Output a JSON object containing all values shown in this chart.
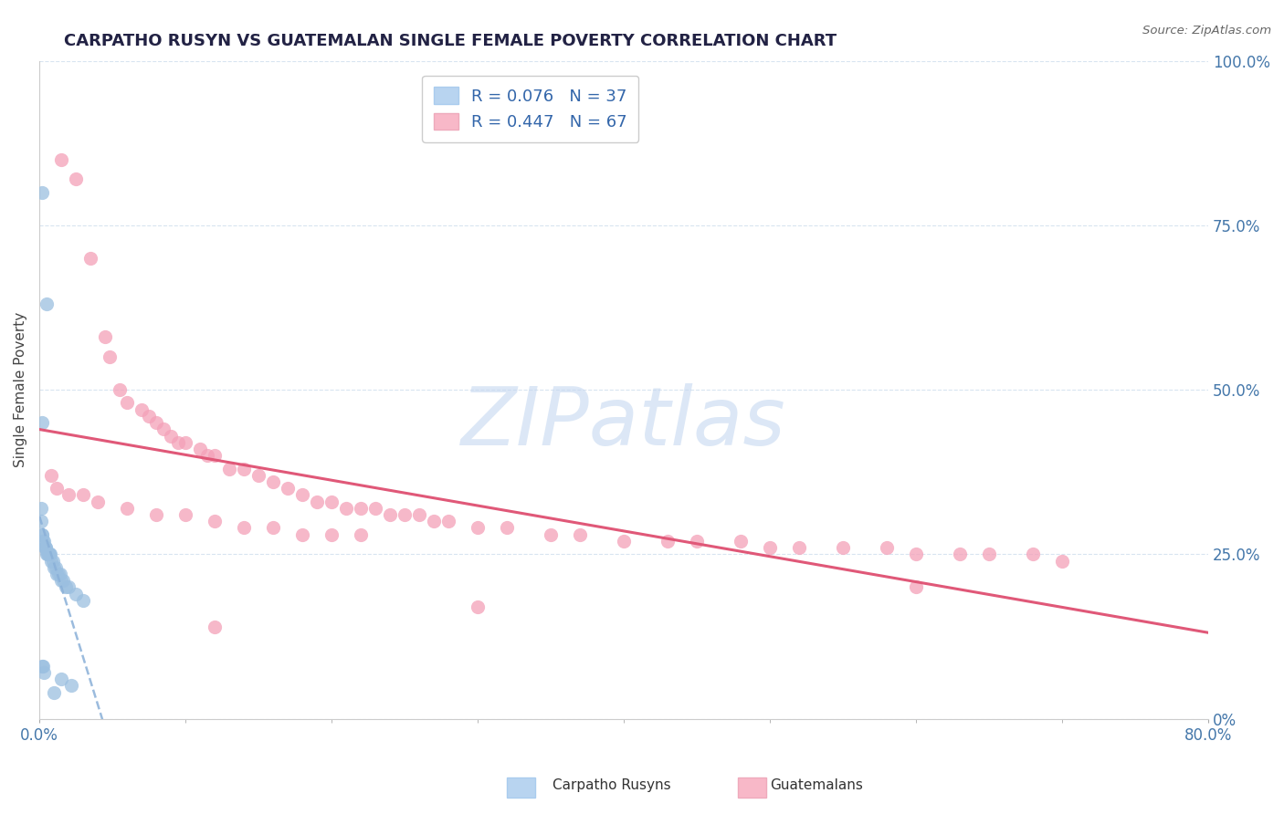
{
  "title": "CARPATHO RUSYN VS GUATEMALAN SINGLE FEMALE POVERTY CORRELATION CHART",
  "source_text": "Source: ZipAtlas.com",
  "ylabel": "Single Female Poverty",
  "ytick_labels": [
    "0%",
    "25.0%",
    "50.0%",
    "75.0%",
    "100.0%"
  ],
  "ytick_values": [
    0,
    25,
    50,
    75,
    100
  ],
  "xmin": 0.0,
  "xmax": 80.0,
  "ymin": 0.0,
  "ymax": 100.0,
  "carpatho_color": "#9bbfe0",
  "guatemalan_color": "#f4a0b8",
  "trendline_carpatho_color": "#8ab0d8",
  "trendline_guatemalan_color": "#e05878",
  "watermark_text": "ZIPatlas",
  "watermark_color": "#c5d8f0",
  "background_color": "#ffffff",
  "grid_color": "#d8e4f0",
  "legend_carpatho_color": "#b8d4f0",
  "legend_guatemalan_color": "#f8b8c8",
  "legend_text_color": "#3366aa",
  "carpatho_x": [
    0.15,
    0.5,
    0.2,
    0.1,
    0.1,
    0.15,
    0.2,
    0.25,
    0.3,
    0.35,
    0.4,
    0.45,
    0.5,
    0.55,
    0.6,
    0.65,
    0.7,
    0.75,
    0.8,
    0.9,
    1.0,
    1.1,
    1.2,
    1.3,
    1.4,
    1.5,
    1.6,
    1.8,
    2.0,
    2.5,
    3.0,
    0.2,
    0.25,
    0.3,
    1.5,
    2.2,
    1.0
  ],
  "carpatho_y": [
    80,
    63,
    45,
    32,
    30,
    28,
    28,
    27,
    27,
    26,
    26,
    26,
    25,
    25,
    25,
    25,
    25,
    25,
    24,
    24,
    23,
    23,
    22,
    22,
    22,
    21,
    21,
    20,
    20,
    19,
    18,
    8,
    8,
    7,
    6,
    5,
    4
  ],
  "guatemalan_x": [
    1.5,
    2.5,
    3.5,
    4.5,
    4.8,
    5.5,
    6.0,
    7.0,
    7.5,
    8.0,
    8.5,
    9.0,
    9.5,
    10.0,
    11.0,
    11.5,
    12.0,
    13.0,
    14.0,
    15.0,
    16.0,
    17.0,
    18.0,
    19.0,
    20.0,
    21.0,
    22.0,
    23.0,
    24.0,
    25.0,
    26.0,
    27.0,
    28.0,
    30.0,
    32.0,
    35.0,
    37.0,
    40.0,
    43.0,
    45.0,
    48.0,
    50.0,
    52.0,
    55.0,
    58.0,
    60.0,
    63.0,
    65.0,
    68.0,
    70.0,
    0.8,
    1.2,
    2.0,
    3.0,
    4.0,
    6.0,
    8.0,
    10.0,
    12.0,
    14.0,
    16.0,
    18.0,
    20.0,
    22.0,
    60.0,
    30.0,
    12.0
  ],
  "guatemalan_y": [
    85,
    82,
    70,
    58,
    55,
    50,
    48,
    47,
    46,
    45,
    44,
    43,
    42,
    42,
    41,
    40,
    40,
    38,
    38,
    37,
    36,
    35,
    34,
    33,
    33,
    32,
    32,
    32,
    31,
    31,
    31,
    30,
    30,
    29,
    29,
    28,
    28,
    27,
    27,
    27,
    27,
    26,
    26,
    26,
    26,
    25,
    25,
    25,
    25,
    24,
    37,
    35,
    34,
    34,
    33,
    32,
    31,
    31,
    30,
    29,
    29,
    28,
    28,
    28,
    20,
    17,
    14
  ]
}
